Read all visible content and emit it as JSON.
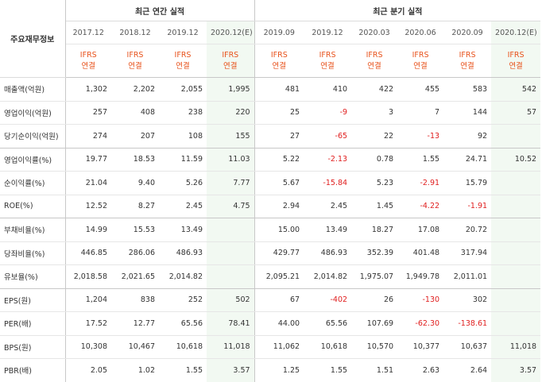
{
  "table": {
    "corner_label": "주요재무정보",
    "annual_header": "최근 연간 실적",
    "quarter_header": "최근 분기 실적",
    "periods": [
      {
        "label": "2017.12",
        "group": "annual",
        "estimate": false
      },
      {
        "label": "2018.12",
        "group": "annual",
        "estimate": false
      },
      {
        "label": "2019.12",
        "group": "annual",
        "estimate": false
      },
      {
        "label": "2020.12(E)",
        "group": "annual",
        "estimate": true
      },
      {
        "label": "2019.09",
        "group": "quarter",
        "estimate": false
      },
      {
        "label": "2019.12",
        "group": "quarter",
        "estimate": false
      },
      {
        "label": "2020.03",
        "group": "quarter",
        "estimate": false
      },
      {
        "label": "2020.06",
        "group": "quarter",
        "estimate": false
      },
      {
        "label": "2020.09",
        "group": "quarter",
        "estimate": false
      },
      {
        "label": "2020.12(E)",
        "group": "quarter",
        "estimate": true
      }
    ],
    "basis_line1": "IFRS",
    "basis_line2": "연결",
    "rows": [
      {
        "label": "매출액(억원)",
        "values": [
          "1,302",
          "2,202",
          "2,055",
          "1,995",
          "481",
          "410",
          "422",
          "455",
          "583",
          "542"
        ]
      },
      {
        "label": "영업이익(억원)",
        "values": [
          "257",
          "408",
          "238",
          "220",
          "25",
          "-9",
          "3",
          "7",
          "144",
          "57"
        ]
      },
      {
        "label": "당기순이익(억원)",
        "values": [
          "274",
          "207",
          "108",
          "155",
          "27",
          "-65",
          "22",
          "-13",
          "92",
          ""
        ]
      },
      {
        "label": "영업이익률(%)",
        "values": [
          "19.77",
          "18.53",
          "11.59",
          "11.03",
          "5.22",
          "-2.13",
          "0.78",
          "1.55",
          "24.71",
          "10.52"
        ]
      },
      {
        "label": "순이익률(%)",
        "values": [
          "21.04",
          "9.40",
          "5.26",
          "7.77",
          "5.67",
          "-15.84",
          "5.23",
          "-2.91",
          "15.79",
          ""
        ]
      },
      {
        "label": "ROE(%)",
        "values": [
          "12.52",
          "8.27",
          "2.45",
          "4.75",
          "2.94",
          "2.45",
          "1.45",
          "-4.22",
          "-1.91",
          ""
        ]
      },
      {
        "label": "부채비율(%)",
        "values": [
          "14.99",
          "15.53",
          "13.49",
          "",
          "15.00",
          "13.49",
          "18.27",
          "17.08",
          "20.72",
          ""
        ]
      },
      {
        "label": "당좌비율(%)",
        "values": [
          "446.85",
          "286.06",
          "486.93",
          "",
          "429.77",
          "486.93",
          "352.39",
          "401.48",
          "317.94",
          ""
        ]
      },
      {
        "label": "유보율(%)",
        "values": [
          "2,018.58",
          "2,021.65",
          "2,014.82",
          "",
          "2,095.21",
          "2,014.82",
          "1,975.07",
          "1,949.78",
          "2,011.01",
          ""
        ]
      },
      {
        "label": "EPS(원)",
        "values": [
          "1,204",
          "838",
          "252",
          "502",
          "67",
          "-402",
          "26",
          "-130",
          "302",
          ""
        ]
      },
      {
        "label": "PER(배)",
        "values": [
          "17.52",
          "12.77",
          "65.56",
          "78.41",
          "44.00",
          "65.56",
          "107.69",
          "-62.30",
          "-138.61",
          ""
        ]
      },
      {
        "label": "BPS(원)",
        "values": [
          "10,308",
          "10,467",
          "10,618",
          "11,018",
          "11,062",
          "10,618",
          "10,570",
          "10,377",
          "10,637",
          "11,018"
        ]
      },
      {
        "label": "PBR(배)",
        "values": [
          "2.05",
          "1.02",
          "1.55",
          "3.57",
          "1.25",
          "1.55",
          "1.51",
          "2.63",
          "2.64",
          "3.57"
        ]
      }
    ],
    "colors": {
      "basis_text": "#e8531d",
      "negative_text": "#e01e1e",
      "estimate_bg": "#f2f9f2",
      "border": "#c8c8c8"
    }
  }
}
